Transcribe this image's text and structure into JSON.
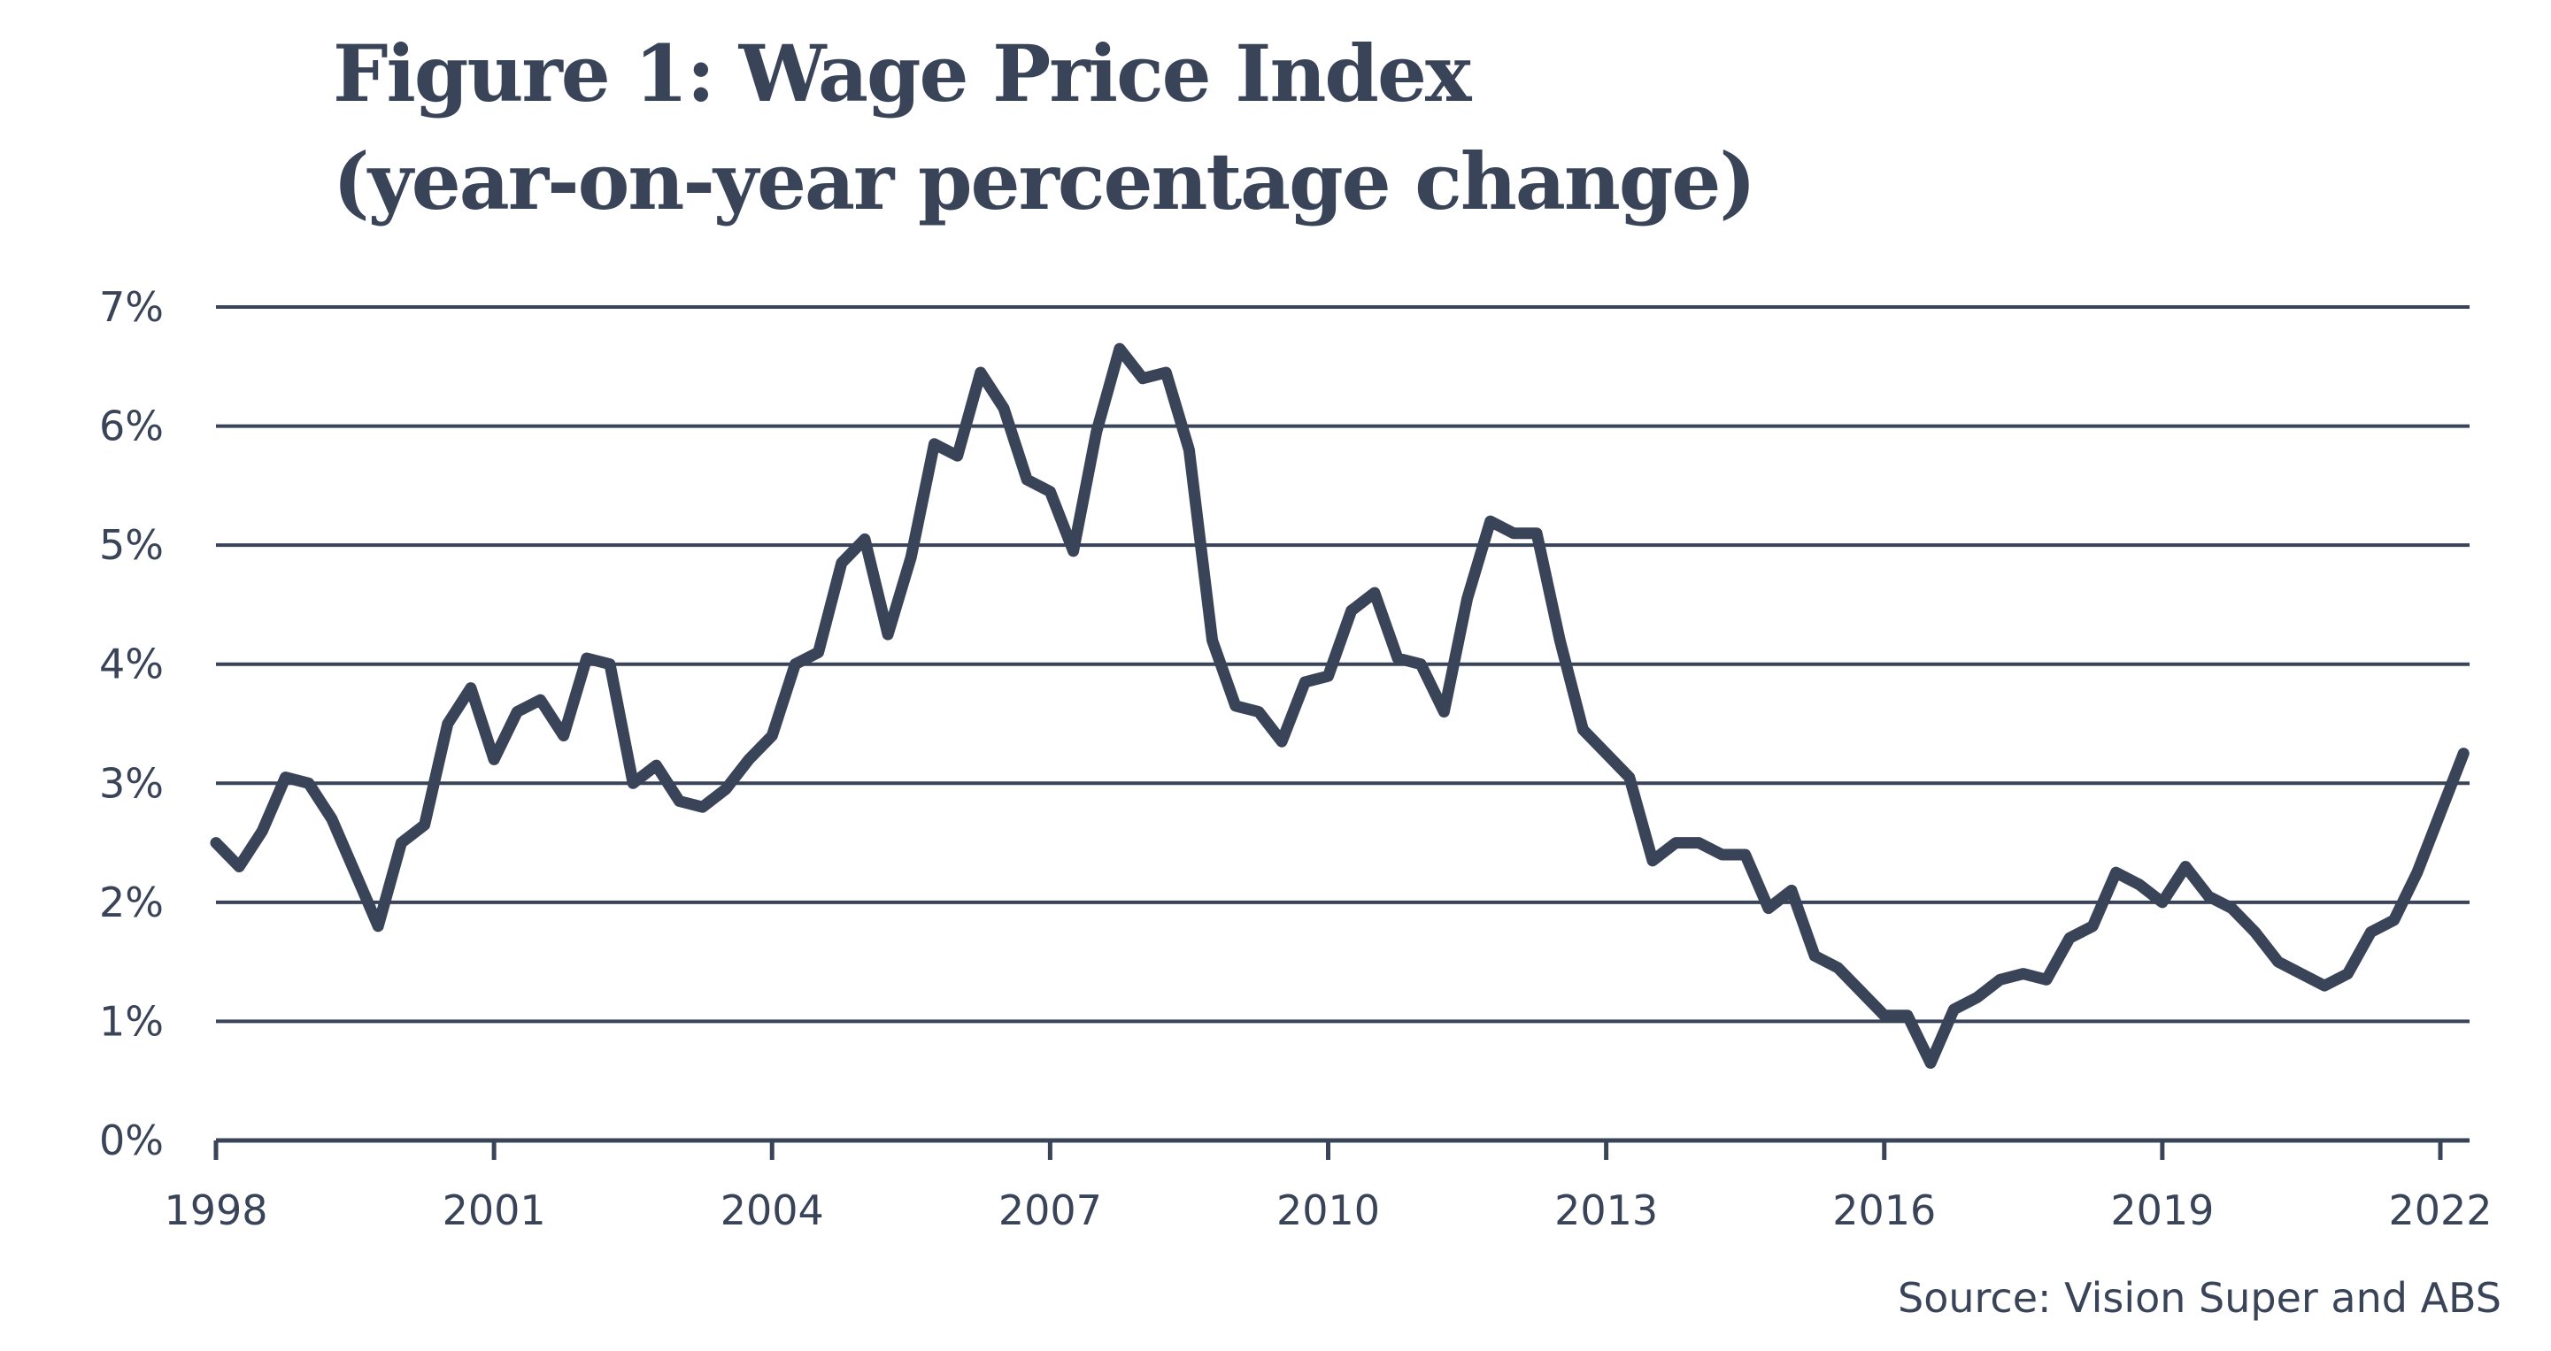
{
  "chart_data": {
    "type": "line",
    "title_line1": "Figure 1: Wage Price Index",
    "title_line2": "(year-on-year percentage change)",
    "xlabel": "",
    "ylabel": "",
    "source": "Source: Vision Super and ABS",
    "xlim": [
      1998,
      2022.25
    ],
    "ylim": [
      0,
      7
    ],
    "x_ticks": [
      1998,
      2001,
      2004,
      2007,
      2010,
      2013,
      2016,
      2019,
      2022
    ],
    "x_tick_labels": [
      "1998",
      "2001",
      "2004",
      "2007",
      "2010",
      "2013",
      "2016",
      "2019",
      "2022"
    ],
    "y_ticks": [
      0,
      1,
      2,
      3,
      4,
      5,
      6,
      7
    ],
    "y_tick_labels": [
      "0%",
      "1%",
      "2%",
      "3%",
      "4%",
      "5%",
      "6%",
      "7%"
    ],
    "grid": "horizontal",
    "line_color": "#3a4459",
    "x": [
      1998.0,
      1998.25,
      1998.5,
      1998.75,
      1999.0,
      1999.25,
      1999.5,
      1999.75,
      2000.0,
      2000.25,
      2000.5,
      2000.75,
      2001.0,
      2001.25,
      2001.5,
      2001.75,
      2002.0,
      2002.25,
      2002.5,
      2002.75,
      2003.0,
      2003.25,
      2003.5,
      2003.75,
      2004.0,
      2004.25,
      2004.5,
      2004.75,
      2005.0,
      2005.25,
      2005.5,
      2005.75,
      2006.0,
      2006.25,
      2006.5,
      2006.75,
      2007.0,
      2007.25,
      2007.5,
      2007.75,
      2008.0,
      2008.25,
      2008.5,
      2008.75,
      2009.0,
      2009.25,
      2009.5,
      2009.75,
      2010.0,
      2010.25,
      2010.5,
      2010.75,
      2011.0,
      2011.25,
      2011.5,
      2011.75,
      2012.0,
      2012.25,
      2012.5,
      2012.75,
      2013.0,
      2013.25,
      2013.5,
      2013.75,
      2014.0,
      2014.25,
      2014.5,
      2014.75,
      2015.0,
      2015.25,
      2015.5,
      2015.75,
      2016.0,
      2016.25,
      2016.5,
      2016.75,
      2017.0,
      2017.25,
      2017.5,
      2017.75,
      2018.0,
      2018.25,
      2018.5,
      2018.75,
      2019.0,
      2019.25,
      2019.5,
      2019.75,
      2020.0,
      2020.25,
      2020.5,
      2020.75,
      2021.0,
      2021.25,
      2021.5,
      2021.75,
      2022.0,
      2022.25
    ],
    "values": [
      2.5,
      2.3,
      2.6,
      3.05,
      3.0,
      2.7,
      2.25,
      1.8,
      2.5,
      2.65,
      3.5,
      3.8,
      3.2,
      3.6,
      3.7,
      3.4,
      4.05,
      4.0,
      3.0,
      3.15,
      2.85,
      2.8,
      2.95,
      3.2,
      3.4,
      4.0,
      4.1,
      4.85,
      5.05,
      4.25,
      4.9,
      5.85,
      5.75,
      6.45,
      6.15,
      5.55,
      5.45,
      4.95,
      5.95,
      6.65,
      6.4,
      6.45,
      5.8,
      4.2,
      3.65,
      3.6,
      3.35,
      3.85,
      3.9,
      4.45,
      4.6,
      4.05,
      4.0,
      3.6,
      4.55,
      5.2,
      5.1,
      5.1,
      4.2,
      3.45,
      3.25,
      3.05,
      2.35,
      2.5,
      2.5,
      2.4,
      2.4,
      1.95,
      2.1,
      1.55,
      1.45,
      1.25,
      1.05,
      1.05,
      0.65,
      1.1,
      1.2,
      1.35,
      1.4,
      1.35,
      1.7,
      1.8,
      2.25,
      2.15,
      2.0,
      2.3,
      2.05,
      1.95,
      1.75,
      1.5,
      1.4,
      1.3,
      1.4,
      1.75,
      1.85,
      2.25,
      2.75,
      3.25
    ]
  }
}
